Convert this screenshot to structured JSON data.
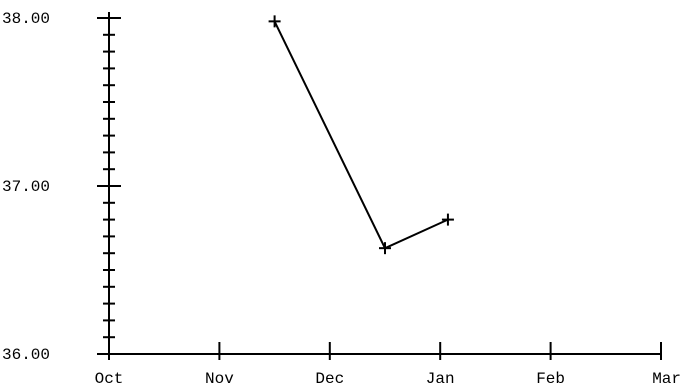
{
  "chart_data": {
    "type": "line",
    "title": "",
    "xlabel": "",
    "ylabel": "",
    "x_tick_labels": [
      "Oct",
      "Nov",
      "Dec",
      "Jan",
      "Feb",
      "Mar"
    ],
    "y_tick_labels": [
      "38.00",
      "37.00",
      "36.00"
    ],
    "y_tick_values": [
      38,
      37,
      36
    ],
    "ylim": [
      36,
      38
    ],
    "y_minor_step": 0.1,
    "grid": false,
    "series": [
      {
        "x": [
          1.5,
          2.5,
          3.07
        ],
        "y": [
          37.98,
          36.63,
          36.8
        ],
        "marker": "plus",
        "color": "#000000"
      }
    ]
  }
}
